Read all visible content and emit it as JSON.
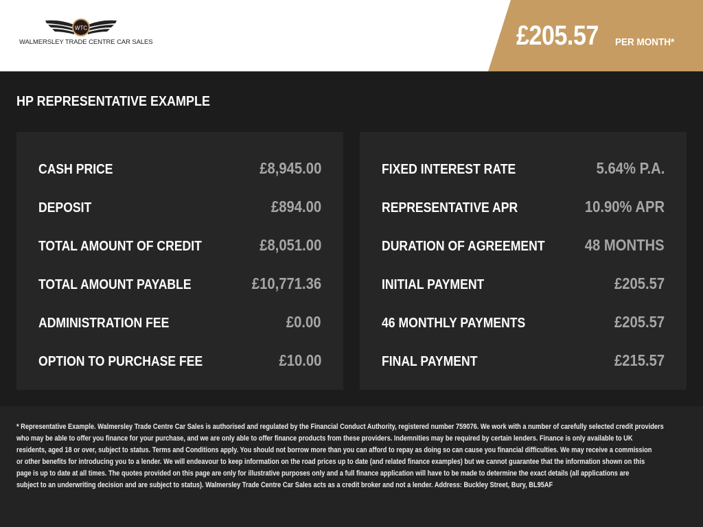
{
  "header": {
    "brand": "WALMERSLEY TRADE CENTRE CAR SALES",
    "logo_badge": "WTC",
    "price": "£205.57",
    "price_suffix": "PER MONTH*",
    "accent_color": "#c69c62"
  },
  "section_title": "HP REPRESENTATIVE EXAMPLE",
  "left_panel": [
    {
      "label": "CASH PRICE",
      "value": "£8,945.00"
    },
    {
      "label": "DEPOSIT",
      "value": "£894.00"
    },
    {
      "label": "TOTAL AMOUNT OF CREDIT",
      "value": "£8,051.00"
    },
    {
      "label": "TOTAL AMOUNT PAYABLE",
      "value": "£10,771.36"
    },
    {
      "label": "ADMINISTRATION FEE",
      "value": "£0.00"
    },
    {
      "label": "OPTION TO PURCHASE FEE",
      "value": "£10.00"
    }
  ],
  "right_panel": [
    {
      "label": "FIXED INTEREST RATE",
      "value": "5.64% P.A."
    },
    {
      "label": "REPRESENTATIVE APR",
      "value": "10.90% APR"
    },
    {
      "label": "DURATION OF AGREEMENT",
      "value": "48 MONTHS"
    },
    {
      "label": "INITIAL PAYMENT",
      "value": "£205.57"
    },
    {
      "label": "46 MONTHLY PAYMENTS",
      "value": "£205.57"
    },
    {
      "label": "FINAL PAYMENT",
      "value": "£215.57"
    }
  ],
  "disclaimer": [
    "* Representative Example. Walmersley Trade Centre Car Sales is authorised and regulated by the Financial Conduct Authority, registered number 759076. We work with a number of carefully selected credit providers",
    "who may be able to offer you finance for your purchase, and we are only able to offer finance products from these providers. Indemnities may be required by certain lenders. Finance is only available to UK",
    "residents, aged 18 or over, subject to status. Terms and Conditions apply. You should not borrow more than you can afford to repay as doing so can cause you financial difficulties. We may receive a commission",
    "or other benefits for introducing you to a lender. We will endeavour to keep information on the road prices up to date (and related finance examples) but we cannot guarantee that the information shown on this",
    "page is up to date at all times. The quotes provided on this page are only for illustrative purposes only and a full finance application will have to be made to determine the exact details (all applications are",
    "subject to an underwriting decision and are subject to status). Walmersley Trade Centre Car Sales acts as a credit broker and not a lender. Address: Buckley Street, Bury, BL95AF"
  ]
}
